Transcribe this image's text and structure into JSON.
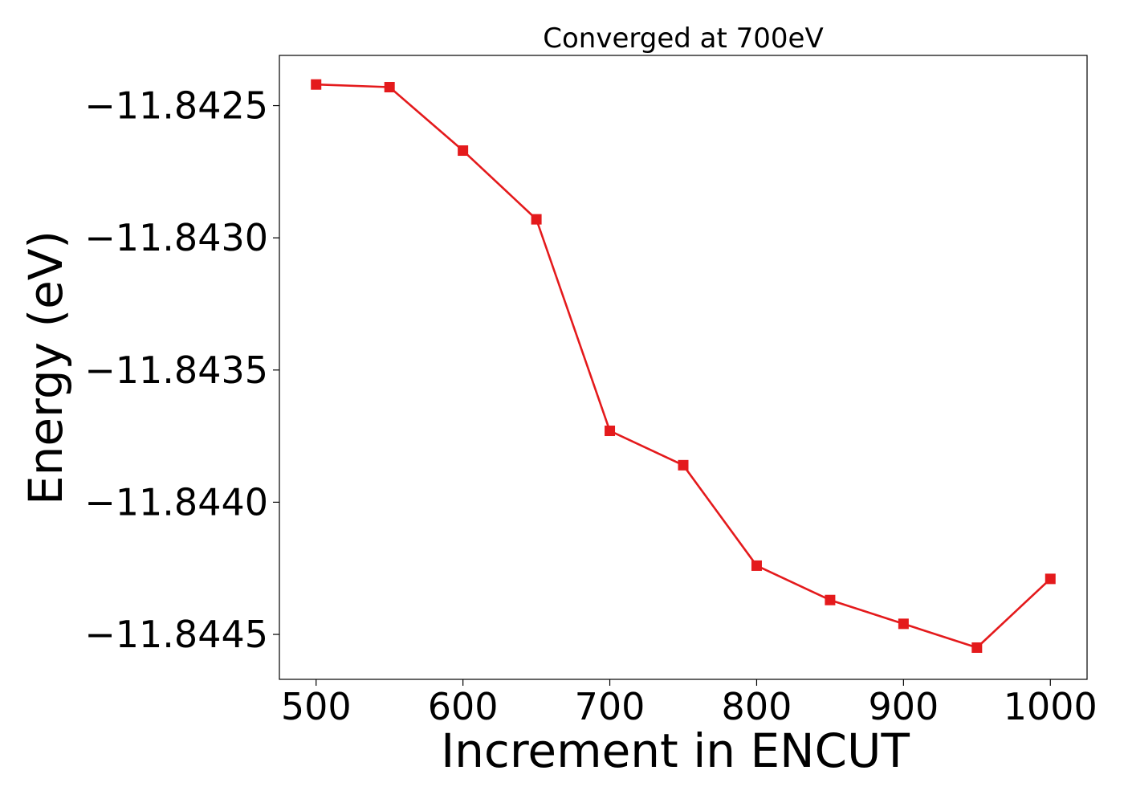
{
  "chart_data": {
    "type": "line",
    "title": "Converged at 700eV",
    "xlabel": "Increment in ENCUT",
    "ylabel": "Energy (eV)",
    "x": [
      500,
      550,
      600,
      650,
      700,
      750,
      800,
      850,
      900,
      950,
      1000
    ],
    "series": [
      {
        "values": [
          -11.84242,
          -11.84243,
          -11.84267,
          -11.84293,
          -11.84373,
          -11.84386,
          -11.84424,
          -11.84437,
          -11.84446,
          -11.84455,
          -11.84429
        ],
        "color": "#e41a1c",
        "marker": "square"
      }
    ],
    "xlim": [
      475,
      1025
    ],
    "ylim": [
      -11.84467,
      -11.84231
    ],
    "xticks": [
      500,
      600,
      700,
      800,
      900,
      1000
    ],
    "xtick_labels": [
      "500",
      "600",
      "700",
      "800",
      "900",
      "1000"
    ],
    "yticks": [
      -11.8425,
      -11.843,
      -11.8435,
      -11.844,
      -11.8445
    ],
    "ytick_labels": [
      "−11.8425",
      "−11.8430",
      "−11.8435",
      "−11.8440",
      "−11.8445"
    ],
    "grid": false,
    "legend": "none"
  }
}
